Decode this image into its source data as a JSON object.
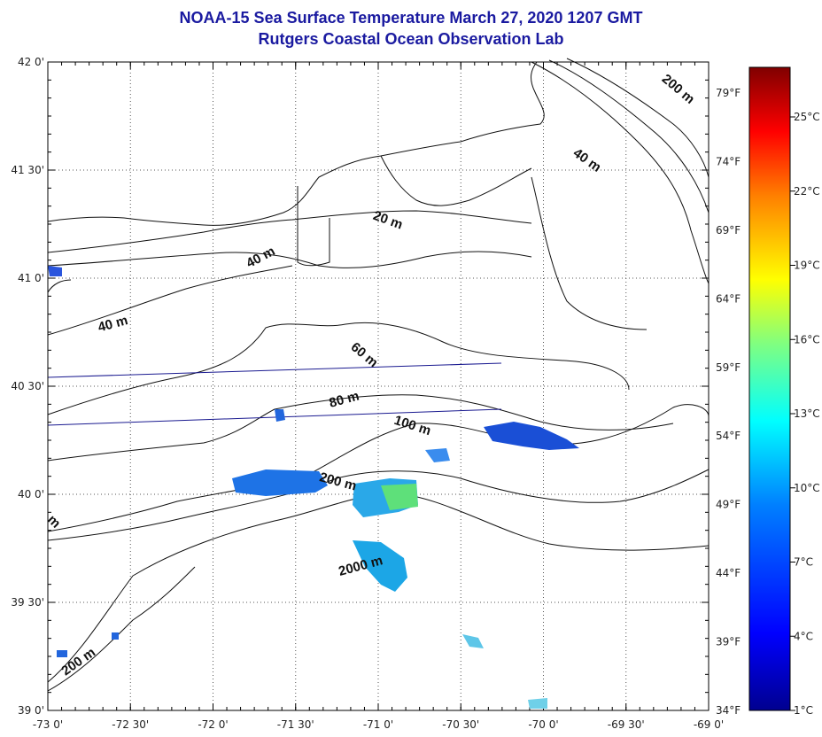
{
  "title": "NOAA-15 Sea Surface Temperature March 27, 2020 1207 GMT",
  "subtitle": "Rutgers Coastal Ocean Observation Lab",
  "map": {
    "lon_min": -73.0,
    "lon_max": -69.0,
    "lat_min": 39.0,
    "lat_max": 42.0,
    "x_ticks": [
      {
        "value": -73.0,
        "label": "-73 0'"
      },
      {
        "value": -72.5,
        "label": "-72 30'"
      },
      {
        "value": -72.0,
        "label": "-72 0'"
      },
      {
        "value": -71.5,
        "label": "-71 30'"
      },
      {
        "value": -71.0,
        "label": "-71 0'"
      },
      {
        "value": -70.5,
        "label": "-70 30'"
      },
      {
        "value": -70.0,
        "label": "-70 0'"
      },
      {
        "value": -69.5,
        "label": "-69 30'"
      },
      {
        "value": -69.0,
        "label": "-69 0'"
      }
    ],
    "y_ticks": [
      {
        "value": 42.0,
        "label": "42 0'"
      },
      {
        "value": 41.5,
        "label": "41 30'"
      },
      {
        "value": 41.0,
        "label": "41 0'"
      },
      {
        "value": 40.5,
        "label": "40 30'"
      },
      {
        "value": 40.0,
        "label": "40 0'"
      },
      {
        "value": 39.5,
        "label": "39 30'"
      },
      {
        "value": 39.0,
        "label": "39 0'"
      }
    ],
    "grid": "dotted",
    "depth_labels": [
      {
        "text": "200 m",
        "lon": -69.2,
        "lat": 41.86,
        "angle": 40
      },
      {
        "text": "40 m",
        "lon": -69.75,
        "lat": 41.53,
        "angle": 35
      },
      {
        "text": "20 m",
        "lon": -70.95,
        "lat": 41.25,
        "angle": 20
      },
      {
        "text": "40 m",
        "lon": -71.7,
        "lat": 41.08,
        "angle": -28
      },
      {
        "text": "40 m",
        "lon": -72.6,
        "lat": 40.77,
        "angle": -15
      },
      {
        "text": "60 m",
        "lon": -71.1,
        "lat": 40.63,
        "angle": 40
      },
      {
        "text": "80 m",
        "lon": -71.2,
        "lat": 40.42,
        "angle": -15
      },
      {
        "text": "100 m",
        "lon": -70.8,
        "lat": 40.3,
        "angle": 18
      },
      {
        "text": "200 m",
        "lon": -71.25,
        "lat": 40.04,
        "angle": 15
      },
      {
        "text": "2000 m",
        "lon": -71.1,
        "lat": 39.65,
        "angle": -15
      },
      {
        "text": "200 m",
        "lon": -72.8,
        "lat": 39.21,
        "angle": -35
      },
      {
        "text": "m",
        "lon": -72.98,
        "lat": 39.86,
        "angle": 45
      }
    ]
  },
  "colorbar": {
    "celsius": [
      "25°C",
      "22°C",
      "19°C",
      "16°C",
      "13°C",
      "10°C",
      "7°C",
      "4°C",
      "1°C"
    ],
    "fahrenheit": [
      "79°F",
      "74°F",
      "69°F",
      "64°F",
      "59°F",
      "54°F",
      "49°F",
      "44°F",
      "39°F",
      "34°F"
    ],
    "colors": [
      "#00008f",
      "#0000ff",
      "#0080ff",
      "#00ffff",
      "#80ff80",
      "#ffff00",
      "#ff8000",
      "#ff0000",
      "#800000"
    ]
  }
}
